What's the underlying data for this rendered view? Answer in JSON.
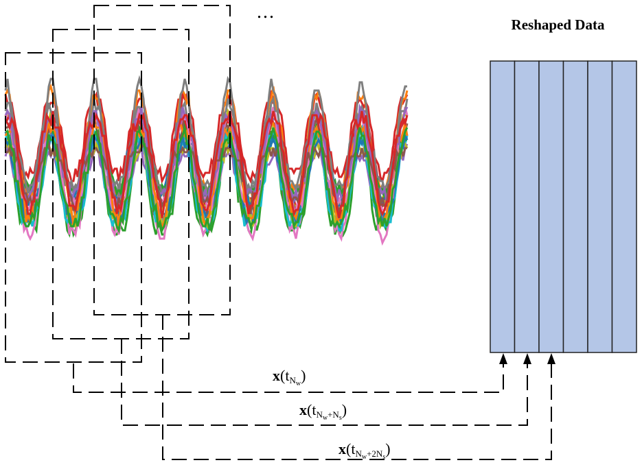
{
  "title": "Reshaped Data",
  "ellipsis": "...",
  "labels": [
    {
      "vec": "x",
      "open": "(t",
      "sub_main": "N",
      "sub_idx": "w",
      "sub_rest": "",
      "sub_tail": "",
      "close": ")"
    },
    {
      "vec": "x",
      "open": "(t",
      "sub_main": "N",
      "sub_idx": "w",
      "sub_rest": "+N",
      "sub_tail": "s",
      "close": ")"
    },
    {
      "vec": "x",
      "open": "(t",
      "sub_main": "N",
      "sub_idx": "w",
      "sub_rest": "+2N",
      "sub_tail": "s",
      "close": ")"
    }
  ],
  "reshaped_columns": 6,
  "colors": {
    "column_fill": "#b4c6e7",
    "series": [
      "#d62728",
      "#2ca02c",
      "#17becf",
      "#bcbd22",
      "#1f77b4",
      "#e377c2",
      "#ff7f0e",
      "#7f7f7f",
      "#9467bd",
      "#8c564b"
    ]
  }
}
